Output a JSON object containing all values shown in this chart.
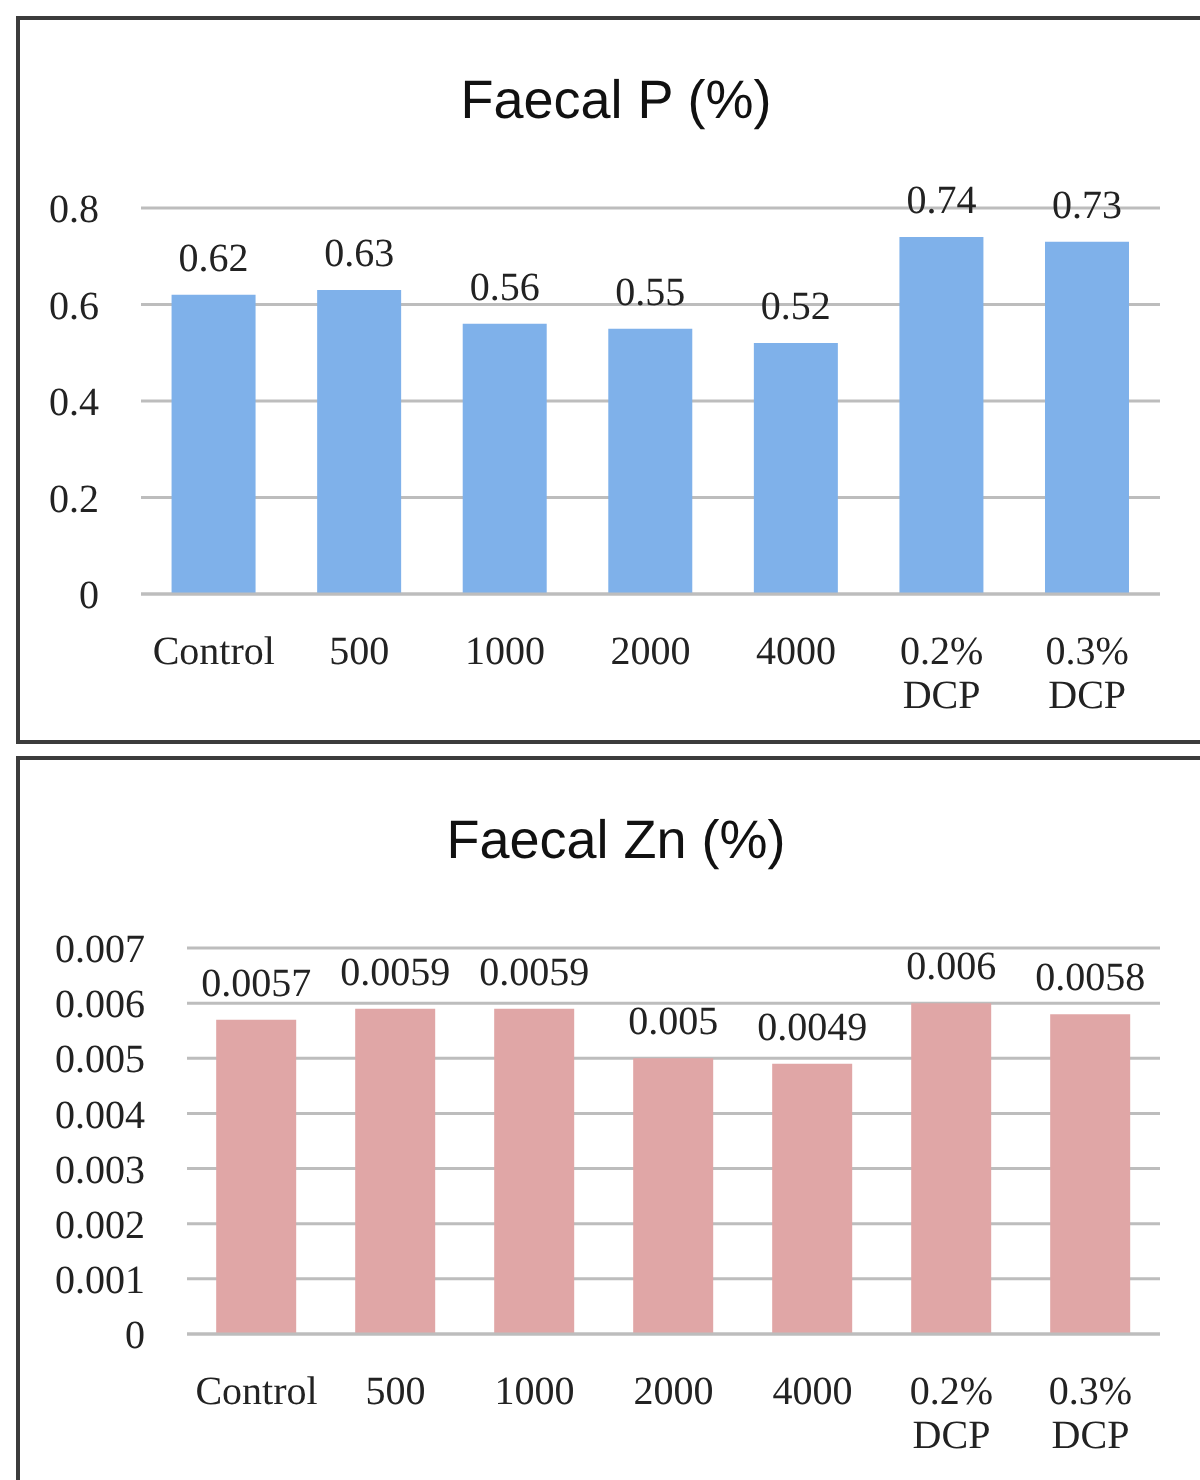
{
  "chart_data": [
    {
      "type": "bar",
      "title": "Faecal P (%)",
      "categories": [
        "Control",
        "500",
        "1000",
        "2000",
        "4000",
        "0.2% DCP",
        "0.3% DCP"
      ],
      "values": [
        0.62,
        0.63,
        0.56,
        0.55,
        0.52,
        0.74,
        0.73
      ],
      "color": "#7fb1ea",
      "ylim": [
        0,
        0.8
      ],
      "yticks": [
        0,
        0.2,
        0.4,
        0.6,
        0.8
      ],
      "grid": "y",
      "data_labels": true
    },
    {
      "type": "bar",
      "title": "Faecal Zn (%)",
      "categories": [
        "Control",
        "500",
        "1000",
        "2000",
        "4000",
        "0.2% DCP",
        "0.3% DCP"
      ],
      "values": [
        0.0057,
        0.0059,
        0.0059,
        0.005,
        0.0049,
        0.006,
        0.0058
      ],
      "color": "#e0a6a6",
      "ylim": [
        0,
        0.007
      ],
      "yticks": [
        0,
        0.001,
        0.002,
        0.003,
        0.004,
        0.005,
        0.006,
        0.007
      ],
      "grid": "y",
      "data_labels": true
    }
  ]
}
